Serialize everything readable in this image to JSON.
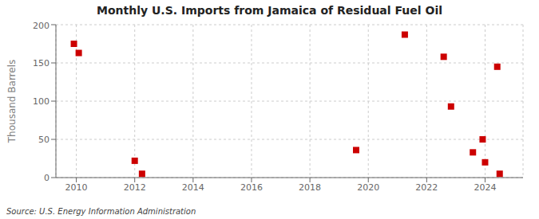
{
  "chart_data": {
    "type": "scatter",
    "title": "Monthly U.S. Imports from Jamaica of Residual Fuel Oil",
    "ylabel": "Thousand Barrels",
    "annotations": [
      "Source: U.S. Energy Information Administration"
    ],
    "x": [
      2009.917,
      2010.083,
      2012.0,
      2012.25,
      2019.583,
      2021.25,
      2022.583,
      2022.833,
      2023.583,
      2023.917,
      2024.0,
      2024.417,
      2024.5
    ],
    "values": [
      175,
      163,
      22,
      5,
      36,
      187,
      158,
      93,
      33,
      50,
      20,
      145,
      5
    ],
    "color": "#cc0000",
    "marker": "square",
    "xlim": [
      2009.3,
      2025.3
    ],
    "xticks": [
      2010,
      2012,
      2014,
      2016,
      2018,
      2020,
      2022,
      2024
    ],
    "ylim": [
      0,
      200
    ],
    "yticks": [
      0,
      50,
      100,
      150,
      200
    ],
    "grid": true
  }
}
